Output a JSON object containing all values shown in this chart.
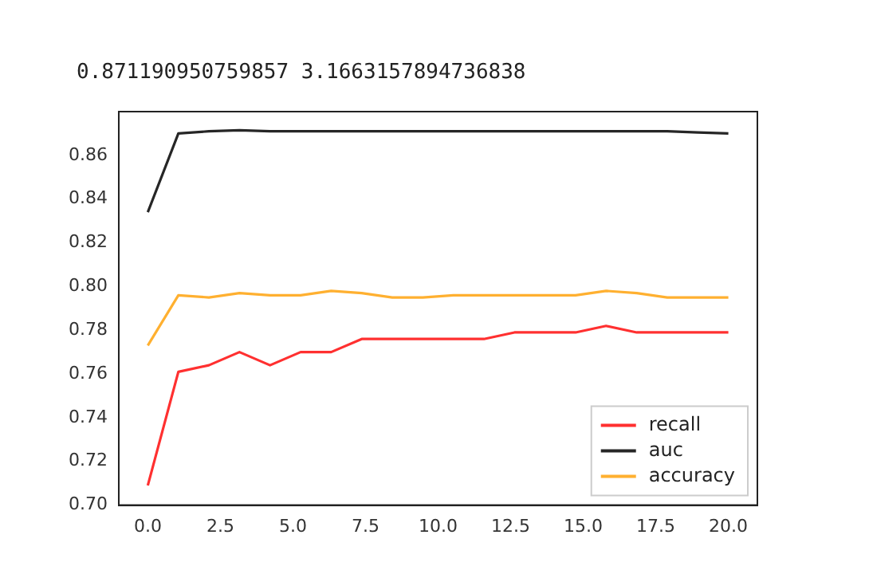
{
  "chart_data": {
    "type": "line",
    "title": "0.871190950759857 3.1663157894736838",
    "x": [
      0,
      1.053,
      2.105,
      3.158,
      4.211,
      5.263,
      6.316,
      7.368,
      8.421,
      9.474,
      10.526,
      11.579,
      12.632,
      13.684,
      14.737,
      15.789,
      16.842,
      17.895,
      18.947,
      20
    ],
    "series": [
      {
        "name": "recall",
        "color": "#ff3030",
        "values": [
          0.709,
          0.761,
          0.764,
          0.77,
          0.764,
          0.77,
          0.77,
          0.776,
          0.776,
          0.776,
          0.776,
          0.776,
          0.779,
          0.779,
          0.779,
          0.782,
          0.779,
          0.779,
          0.779,
          0.779
        ]
      },
      {
        "name": "auc",
        "color": "#262626",
        "values": [
          0.834,
          0.87,
          0.871,
          0.8715,
          0.871,
          0.871,
          0.871,
          0.871,
          0.871,
          0.871,
          0.871,
          0.871,
          0.871,
          0.871,
          0.871,
          0.871,
          0.871,
          0.871,
          0.8705,
          0.87
        ]
      },
      {
        "name": "accuracy",
        "color": "#ffb030",
        "values": [
          0.773,
          0.796,
          0.795,
          0.797,
          0.796,
          0.796,
          0.798,
          0.797,
          0.795,
          0.795,
          0.796,
          0.796,
          0.796,
          0.796,
          0.796,
          0.798,
          0.797,
          0.795,
          0.795,
          0.795
        ]
      }
    ],
    "xlim": [
      -1,
      21
    ],
    "xticks": [
      {
        "value": 0,
        "label": "0.0"
      },
      {
        "value": 2.5,
        "label": "2.5"
      },
      {
        "value": 5,
        "label": "5.0"
      },
      {
        "value": 7.5,
        "label": "7.5"
      },
      {
        "value": 10,
        "label": "10.0"
      },
      {
        "value": 12.5,
        "label": "12.5"
      },
      {
        "value": 15,
        "label": "15.0"
      },
      {
        "value": 17.5,
        "label": "17.5"
      },
      {
        "value": 20,
        "label": "20.0"
      }
    ],
    "ylim": [
      0.7,
      0.88
    ],
    "yticks": [
      {
        "value": 0.7,
        "label": "0.70"
      },
      {
        "value": 0.72,
        "label": "0.72"
      },
      {
        "value": 0.74,
        "label": "0.74"
      },
      {
        "value": 0.76,
        "label": "0.76"
      },
      {
        "value": 0.78,
        "label": "0.78"
      },
      {
        "value": 0.8,
        "label": "0.80"
      },
      {
        "value": 0.82,
        "label": "0.82"
      },
      {
        "value": 0.84,
        "label": "0.84"
      },
      {
        "value": 0.86,
        "label": "0.86"
      }
    ],
    "legend": "bottom right",
    "grid": false,
    "marker": "none",
    "line_style": "solid"
  }
}
